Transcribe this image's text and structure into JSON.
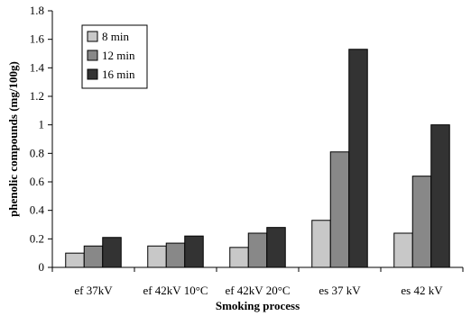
{
  "chart_data": {
    "type": "bar",
    "title": "",
    "xlabel": "Smoking process",
    "ylabel": "phenolic compounds (mg/100g)",
    "ylim": [
      0,
      1.8
    ],
    "yticks": [
      "0",
      "0.2",
      "0.4",
      "0.6",
      "0.8",
      "1",
      "1.2",
      "1.4",
      "1.6",
      "1.8"
    ],
    "categories": [
      "ef 37kV",
      "ef 42kV 10°C",
      "ef 42kV 20°C",
      "es 37 kV",
      "es 42 kV"
    ],
    "series": [
      {
        "name": "8 min",
        "color": "#c8c8c8",
        "values": [
          0.1,
          0.15,
          0.14,
          0.33,
          0.24
        ]
      },
      {
        "name": "12 min",
        "color": "#888888",
        "values": [
          0.15,
          0.17,
          0.24,
          0.81,
          0.64
        ]
      },
      {
        "name": "16 min",
        "color": "#333333",
        "values": [
          0.21,
          0.22,
          0.28,
          1.53,
          1.0
        ]
      }
    ],
    "grid": false,
    "legend": "top-left"
  }
}
